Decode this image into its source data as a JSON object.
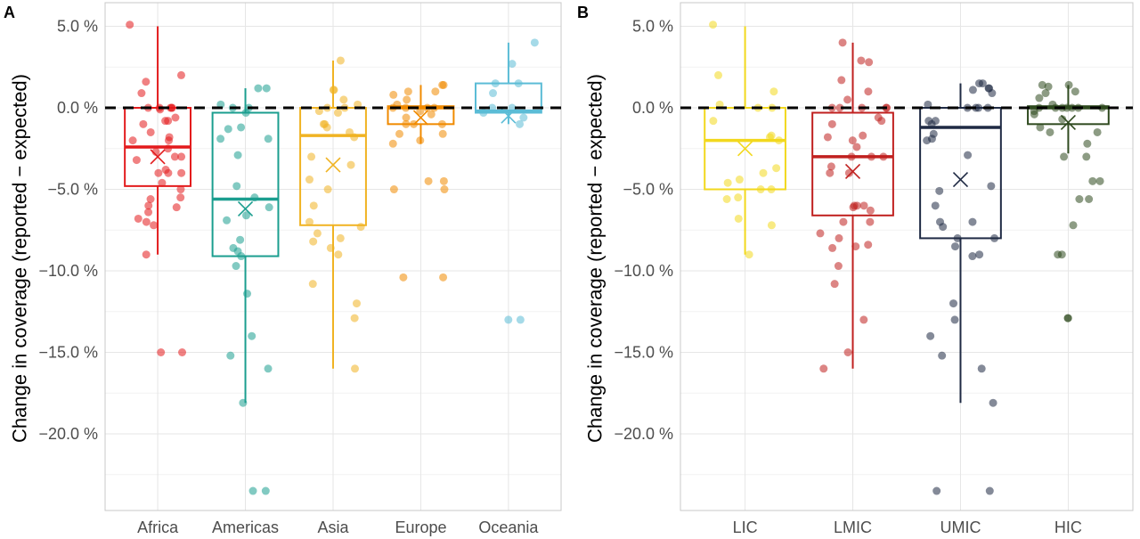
{
  "chart_data": [
    {
      "panel_label": "A",
      "type": "box",
      "ylabel": "Change in coverage (reported − expected)",
      "ylim": [
        -24.7,
        6.45
      ],
      "yticks": [
        5,
        0,
        -5,
        -10,
        -15,
        -20
      ],
      "ytick_labels": [
        "5.0 %",
        "0.0 %",
        "−5.0 %",
        "−10.0 %",
        "−15.0 %",
        "−20.0 %"
      ],
      "reference_line": {
        "y": 0,
        "style": "dashed",
        "color": "#000000"
      },
      "grid": true,
      "categories": [
        "Africa",
        "Americas",
        "Asia",
        "Europe",
        "Oceania"
      ],
      "colors": [
        "#e31a1c",
        "#1b9e8f",
        "#f0b323",
        "#f08a00",
        "#5bbcd6"
      ],
      "boxes": [
        {
          "q1": -4.8,
          "median": -2.4,
          "q3": 0.0,
          "whisker_low": -9.0,
          "whisker_high": 5.0,
          "mean": -3.0
        },
        {
          "q1": -9.1,
          "median": -5.6,
          "q3": -0.3,
          "whisker_low": -18.1,
          "whisker_high": 1.2,
          "mean": -6.2
        },
        {
          "q1": -7.2,
          "median": -1.7,
          "q3": 0.0,
          "whisker_low": -16.0,
          "whisker_high": 2.9,
          "mean": -3.5
        },
        {
          "q1": -1.0,
          "median": 0.0,
          "q3": 0.1,
          "whisker_low": -2.2,
          "whisker_high": 1.4,
          "mean": -0.6
        },
        {
          "q1": -0.3,
          "median": -0.2,
          "q3": 1.5,
          "whisker_low": -1.0,
          "whisker_high": 4.0,
          "mean": -0.5
        }
      ],
      "points": [
        [
          5.1,
          2.0,
          1.6,
          0.9,
          0,
          0,
          0,
          0,
          0,
          -0.1,
          -0.8,
          -0.8,
          -0.6,
          -1.0,
          -1.5,
          -1.8,
          -2.0,
          -2.0,
          -2.5,
          -2.7,
          -3.0,
          -3.0,
          -3.2,
          -4.0,
          -4.0,
          -4.0,
          -3.8,
          -4.6,
          -5.0,
          -5.5,
          -5.6,
          -6.0,
          -6.1,
          -6.4,
          -6.8,
          -7.0,
          -7.2,
          -9.0,
          -15.0,
          -15.0
        ],
        [
          1.2,
          1.2,
          0.2,
          0,
          0,
          -0.3,
          -1.2,
          -1.3,
          -1.9,
          -1.9,
          -2.9,
          -4.8,
          -5.5,
          -6.1,
          -6.6,
          -6.9,
          -8.1,
          -8.6,
          -8.8,
          -9.1,
          -9.7,
          -11.4,
          -14.0,
          -15.2,
          -16.0,
          -18.1,
          -23.5,
          -23.5
        ],
        [
          2.9,
          1.1,
          1.1,
          0.5,
          0.2,
          0,
          0,
          -0.2,
          -0.3,
          -1.0,
          -1.0,
          -1.2,
          -1.5,
          -1.8,
          -3.0,
          -3.5,
          -4.4,
          -5.0,
          -6.0,
          -7.0,
          -7.3,
          -7.7,
          -8.0,
          -8.2,
          -8.6,
          -9.0,
          -10.8,
          -12.0,
          -12.9,
          -16.0
        ],
        [
          1.4,
          1.4,
          1.0,
          1.0,
          0.8,
          0.5,
          0.2,
          0,
          0,
          0,
          0,
          -0.2,
          -0.4,
          -0.6,
          -1.0,
          -1.0,
          -1.0,
          -1.6,
          -1.6,
          -2.0,
          -2.2,
          -4.5,
          -4.5,
          -5.0,
          -5.0,
          -10.4,
          -10.4
        ],
        [
          4.0,
          2.7,
          1.5,
          1.5,
          0.9,
          0,
          0,
          -0.3,
          -0.6,
          -1.0,
          -13.0,
          -13.0
        ]
      ]
    },
    {
      "panel_label": "B",
      "type": "box",
      "ylabel": "Change in coverage (reported − expected)",
      "ylim": [
        -24.7,
        6.45
      ],
      "yticks": [
        5,
        0,
        -5,
        -10,
        -15,
        -20
      ],
      "ytick_labels": [
        "5.0 %",
        "0.0 %",
        "−5.0 %",
        "−10.0 %",
        "−15.0 %",
        "−20.0 %"
      ],
      "reference_line": {
        "y": 0,
        "style": "dashed",
        "color": "#000000"
      },
      "grid": true,
      "categories": [
        "LIC",
        "LMIC",
        "UMIC",
        "HIC"
      ],
      "colors": [
        "#f2d81d",
        "#c0201f",
        "#1f2a44",
        "#2f4a1f"
      ],
      "boxes": [
        {
          "q1": -5.0,
          "median": -2.0,
          "q3": 0.0,
          "whisker_low": -9.0,
          "whisker_high": 5.0,
          "mean": -2.5
        },
        {
          "q1": -6.6,
          "median": -3.0,
          "q3": -0.3,
          "whisker_low": -16.0,
          "whisker_high": 4.0,
          "mean": -3.9
        },
        {
          "q1": -8.0,
          "median": -1.2,
          "q3": 0.0,
          "whisker_low": -18.1,
          "whisker_high": 1.5,
          "mean": -4.4
        },
        {
          "q1": -1.0,
          "median": 0.0,
          "q3": 0.1,
          "whisker_low": -2.8,
          "whisker_high": 1.4,
          "mean": -0.9
        }
      ],
      "points": [
        [
          5.1,
          2.0,
          1.0,
          0.2,
          0,
          0,
          -0.8,
          -1.7,
          -1.8,
          -2.0,
          -3.7,
          -4.0,
          -4.4,
          -4.6,
          -5.0,
          -5.0,
          -5.5,
          -5.6,
          -6.8,
          -7.2,
          -9.0
        ],
        [
          4.0,
          2.9,
          2.8,
          1.7,
          1.0,
          0.5,
          0,
          0,
          0,
          0,
          0,
          -0.6,
          -0.8,
          -1.0,
          -1.7,
          -1.8,
          -2.0,
          -2.4,
          -3.0,
          -3.0,
          -3.0,
          -3.6,
          -4.0,
          -4.0,
          -6.0,
          -6.0,
          -6.0,
          -6.1,
          -6.3,
          -7.0,
          -7.0,
          -7.7,
          -8.0,
          -8.5,
          -8.6,
          -8.4,
          -9.7,
          -10.8,
          -13.0,
          -15.0,
          -16.0
        ],
        [
          1.5,
          1.5,
          1.2,
          1.2,
          1.1,
          0.9,
          0.2,
          0,
          0,
          0,
          0,
          -0.8,
          -0.8,
          -1.0,
          -1.6,
          -1.9,
          -2.0,
          -2.9,
          -4.8,
          -5.1,
          -6.0,
          -7.0,
          -7.0,
          -7.3,
          -8.0,
          -8.0,
          -8.5,
          -9.1,
          -9.0,
          -12.0,
          -13.0,
          -14.0,
          -15.2,
          -16.0,
          -18.1,
          -23.5,
          -23.5
        ],
        [
          1.4,
          1.4,
          1.3,
          1.0,
          0.9,
          0.6,
          0.2,
          0,
          0,
          0,
          0,
          0,
          0,
          0,
          -0.2,
          -0.4,
          -0.7,
          -1.2,
          -1.5,
          -1.5,
          -2.2,
          -3.0,
          -3.0,
          -4.5,
          -4.5,
          -5.6,
          -5.6,
          -7.2,
          -9.0,
          -9.0,
          -12.9,
          -12.9
        ]
      ]
    }
  ]
}
